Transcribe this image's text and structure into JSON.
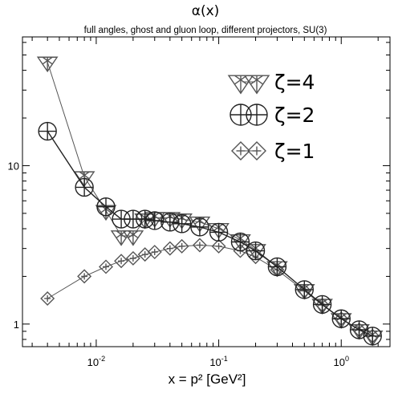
{
  "chart_data": {
    "type": "scatter",
    "title": "α(x)",
    "subtitle": "full angles, ghost and gluon loop, different projectors, SU(3)",
    "xlabel": "x = p²  [GeV²]",
    "ylabel": "",
    "xscale": "log",
    "yscale": "log",
    "xlim": [
      0.0025,
      2.5
    ],
    "ylim": [
      0.72,
      65
    ],
    "grid": false,
    "legend_position": "top-right",
    "x_ticks": [
      {
        "value": 0.01,
        "base": "10",
        "exp": "-2"
      },
      {
        "value": 0.1,
        "base": "10",
        "exp": "-1"
      },
      {
        "value": 1,
        "base": "10",
        "exp": "0"
      }
    ],
    "y_ticks": [
      {
        "value": 1,
        "label": "1"
      },
      {
        "value": 10,
        "label": "10"
      }
    ],
    "series": [
      {
        "name": "ζ=4",
        "marker": "triangle-down-star",
        "color": "#555555",
        "x": [
          0.004,
          0.008,
          0.012,
          0.016,
          0.02,
          0.025,
          0.03,
          0.04,
          0.05,
          0.07,
          0.1,
          0.15,
          0.2,
          0.3,
          0.5,
          0.7,
          1.0,
          1.4,
          1.8
        ],
        "y": [
          45,
          8.5,
          5.2,
          3.6,
          3.6,
          4.6,
          4.7,
          4.7,
          4.6,
          4.4,
          4.0,
          3.4,
          2.95,
          2.3,
          1.65,
          1.33,
          1.08,
          0.92,
          0.84
        ]
      },
      {
        "name": "ζ=2",
        "marker": "circle-cross",
        "color": "#222222",
        "x": [
          0.004,
          0.008,
          0.012,
          0.016,
          0.02,
          0.025,
          0.03,
          0.04,
          0.05,
          0.07,
          0.1,
          0.15,
          0.2,
          0.3,
          0.5,
          0.7,
          1.0,
          1.4,
          1.8
        ],
        "y": [
          16.5,
          7.3,
          5.5,
          4.6,
          4.6,
          4.6,
          4.5,
          4.4,
          4.3,
          4.1,
          3.8,
          3.3,
          2.9,
          2.3,
          1.65,
          1.33,
          1.08,
          0.92,
          0.84
        ]
      },
      {
        "name": "ζ=1",
        "marker": "diamond-cross",
        "color": "#555555",
        "x": [
          0.004,
          0.008,
          0.012,
          0.016,
          0.02,
          0.025,
          0.03,
          0.04,
          0.05,
          0.07,
          0.1,
          0.15,
          0.2,
          0.3,
          0.5,
          0.7,
          1.0,
          1.4,
          1.8
        ],
        "y": [
          1.45,
          2.0,
          2.3,
          2.5,
          2.6,
          2.75,
          2.85,
          3.0,
          3.1,
          3.15,
          3.1,
          2.9,
          2.65,
          2.2,
          1.62,
          1.32,
          1.08,
          0.92,
          0.84
        ]
      }
    ]
  }
}
